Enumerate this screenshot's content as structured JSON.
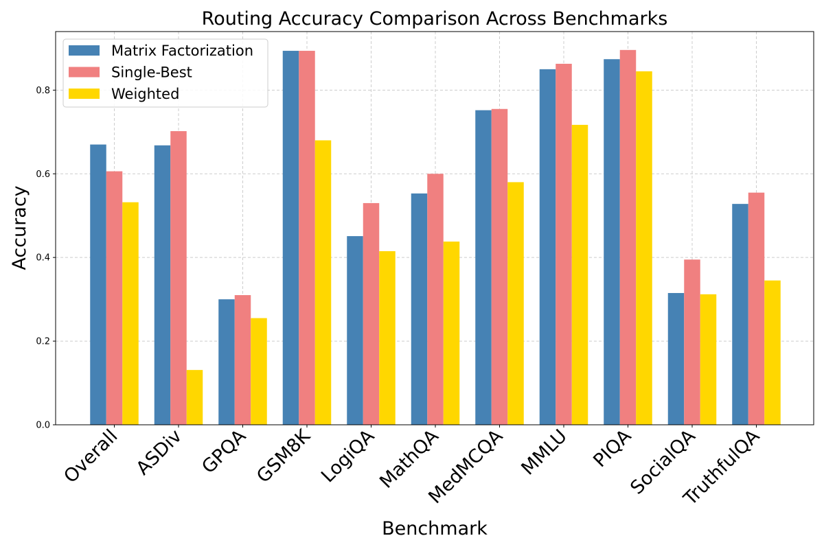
{
  "chart_data": {
    "type": "bar",
    "title": "Routing Accuracy Comparison Across Benchmarks",
    "xlabel": "Benchmark",
    "ylabel": "Accuracy",
    "ylim": [
      0,
      0.94
    ],
    "yticks": [
      "0.0",
      "0.2",
      "0.4",
      "0.6",
      "0.8"
    ],
    "grid": true,
    "legend_position": "top-left",
    "categories": [
      "Overall",
      "ASDiv",
      "GPQA",
      "GSM8K",
      "LogiQA",
      "MathQA",
      "MedMCQA",
      "MMLU",
      "PIQA",
      "SocialQA",
      "TruthfulQA"
    ],
    "series": [
      {
        "name": "Matrix Factorization",
        "color": "#4682b4",
        "values": [
          0.67,
          0.668,
          0.3,
          0.894,
          0.451,
          0.553,
          0.752,
          0.85,
          0.874,
          0.315,
          0.528
        ]
      },
      {
        "name": "Single-Best",
        "color": "#f08080",
        "values": [
          0.606,
          0.702,
          0.31,
          0.894,
          0.53,
          0.6,
          0.755,
          0.863,
          0.896,
          0.395,
          0.555
        ]
      },
      {
        "name": "Weighted",
        "color": "#ffd700",
        "values": [
          0.532,
          0.131,
          0.255,
          0.68,
          0.415,
          0.438,
          0.58,
          0.717,
          0.845,
          0.312,
          0.345
        ]
      }
    ]
  }
}
